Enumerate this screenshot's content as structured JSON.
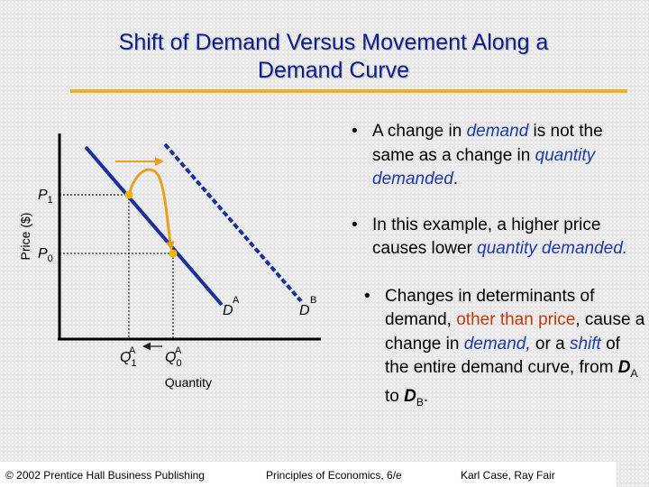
{
  "title": {
    "line1": "Shift of Demand Versus Movement Along a",
    "line2": "Demand Curve"
  },
  "graph": {
    "ylabel": "Price ($)",
    "xlabel": "Quantity",
    "p1": "P",
    "p1_sub": "1",
    "p0": "P",
    "p0_sub": "0",
    "q1": "Q",
    "q1_sub": "1",
    "q1_sup": "A",
    "q0": "Q",
    "q0_sub": "0",
    "q0_sup": "A",
    "da": "D",
    "da_sup": "A",
    "db": "D",
    "db_sup": "B",
    "colors": {
      "curve_a": "#1b2f9a",
      "curve_b": "#1b2f9a",
      "arrow": "#e8a020",
      "point": "#f0b400"
    }
  },
  "bullets": {
    "b1": {
      "t1": "A change in ",
      "e1": "demand",
      "t2": " is not the same as a change in ",
      "e2": "quantity demanded",
      "t3": "."
    },
    "b2": {
      "t1": "In this example, a higher price causes lower ",
      "e1": "quantity demanded."
    },
    "b3": {
      "t1": "Changes in determinants of demand, ",
      "o1": "other than price",
      "t2": ", cause a change in ",
      "e1": "demand,",
      "t3": " or a ",
      "e2": "shift",
      "t4": " of the entire demand curve, from ",
      "d1": "D",
      "d1_sub": "A",
      "t5": " to ",
      "d2": "D",
      "d2_sub": "B",
      "t6": "."
    },
    "dot": "•"
  },
  "footer": {
    "copyright": "© 2002 Prentice Hall Business Publishing",
    "book": "Principles of Economics, 6/e",
    "authors": "Karl Case, Ray Fair"
  }
}
